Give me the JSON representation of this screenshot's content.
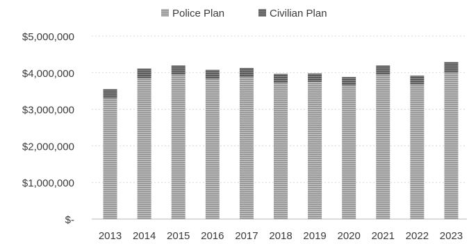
{
  "chart_data": {
    "type": "bar",
    "stacked": true,
    "categories": [
      "2013",
      "2014",
      "2015",
      "2016",
      "2017",
      "2018",
      "2019",
      "2020",
      "2021",
      "2022",
      "2023"
    ],
    "series": [
      {
        "name": "Police Plan",
        "color": "#9a9a9a",
        "values": [
          3300000,
          3850000,
          3950000,
          3830000,
          3880000,
          3720000,
          3750000,
          3650000,
          3950000,
          3680000,
          4000000
        ]
      },
      {
        "name": "Civilian Plan",
        "color": "#5f5f5f",
        "values": [
          250000,
          260000,
          250000,
          250000,
          250000,
          250000,
          230000,
          230000,
          250000,
          240000,
          290000
        ]
      }
    ],
    "ytick_labels": [
      "$-",
      "$1,000,000",
      "$2,000,000",
      "$3,000,000",
      "$4,000,000",
      "$5,000,000"
    ],
    "ylim": [
      0,
      5000000
    ],
    "grid": true,
    "legend_position": "top"
  }
}
